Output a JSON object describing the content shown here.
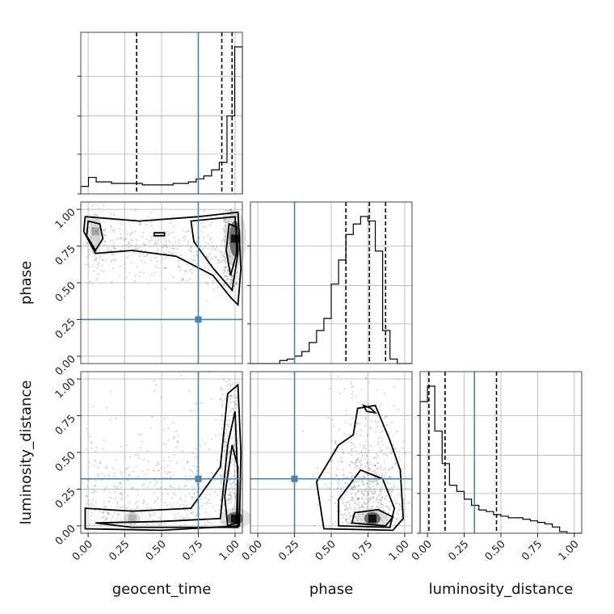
{
  "chart_data": {
    "type": "corner",
    "parameters": [
      "geocent_time",
      "phase",
      "luminosity_distance"
    ],
    "tick_values": [
      0.0,
      0.25,
      0.5,
      0.75,
      1.0
    ],
    "tick_labels": [
      "0.00",
      "0.25",
      "0.50",
      "0.75",
      "1.00"
    ],
    "axis_range": [
      -0.05,
      1.05
    ],
    "grid": true,
    "truths": {
      "geocent_time": 0.75,
      "phase": 0.25,
      "luminosity_distance": 0.32
    },
    "colors": {
      "truth": "#4682b4",
      "hist": "#000000",
      "quantile": "#000000",
      "contour": "#000000",
      "scatter": "#888888",
      "grid": "#b0b0b0",
      "spine": "#444444"
    },
    "histograms": [
      {
        "param": "geocent_time",
        "bin_edges_range": [
          -0.05,
          1.05
        ],
        "counts": [
          5,
          11,
          8,
          8,
          7,
          7,
          7,
          7,
          6,
          6,
          6,
          6,
          7,
          7,
          8,
          10,
          12,
          16,
          21,
          52,
          98
        ],
        "quantiles": [
          0.33,
          0.91,
          0.98
        ]
      },
      {
        "param": "phase",
        "bin_edges_range": [
          -0.05,
          1.05
        ],
        "counts": [
          0,
          0,
          0,
          0,
          2,
          3,
          5,
          8,
          14,
          22,
          30,
          53,
          69,
          86,
          93,
          98,
          95,
          75,
          22,
          3,
          0,
          0
        ],
        "quantiles": [
          0.6,
          0.76,
          0.87
        ]
      },
      {
        "param": "luminosity_distance",
        "bin_edges_range": [
          -0.05,
          1.05
        ],
        "counts": [
          85,
          95,
          66,
          45,
          31,
          27,
          22,
          18,
          15,
          14,
          12,
          11,
          10,
          10,
          9,
          8,
          7,
          6,
          4,
          1,
          0,
          0
        ],
        "quantiles": [
          0.01,
          0.12,
          0.47
        ]
      }
    ],
    "pairs": [
      {
        "x": "geocent_time",
        "y": "phase",
        "density_peaks": [
          {
            "x": 1.0,
            "y": 0.8,
            "weight": 1.0
          },
          {
            "x": 0.05,
            "y": 0.85,
            "weight": 0.25
          }
        ]
      },
      {
        "x": "geocent_time",
        "y": "luminosity_distance",
        "density_peaks": [
          {
            "x": 1.0,
            "y": 0.05,
            "weight": 1.0
          },
          {
            "x": 0.3,
            "y": 0.05,
            "weight": 0.2
          }
        ]
      },
      {
        "x": "phase",
        "y": "luminosity_distance",
        "density_peaks": [
          {
            "x": 0.78,
            "y": 0.05,
            "weight": 1.0
          }
        ]
      }
    ]
  }
}
